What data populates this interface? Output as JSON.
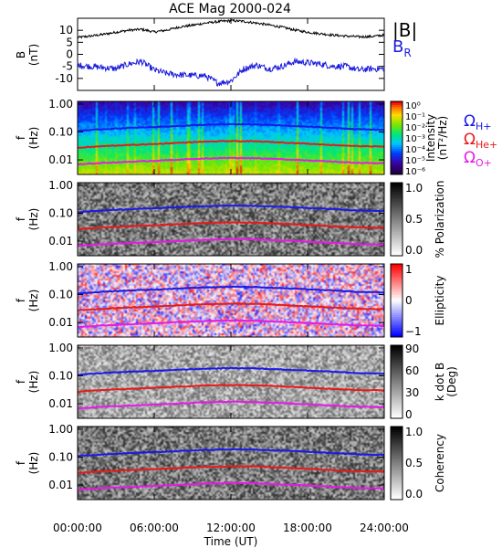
{
  "title": "ACE Mag 2000-024",
  "x_axis": {
    "label": "Time (UT)",
    "ticks": [
      "00:00:00",
      "06:00:00",
      "12:00:00",
      "18:00:00",
      "24:00:00"
    ]
  },
  "freq_ticks": [
    "1.00",
    "0.10",
    "0.01"
  ],
  "legends": {
    "bmag": "|B|",
    "br": "B",
    "br_sub": "R",
    "omega_h": "Ω",
    "omega_h_sub": "H+",
    "omega_he": "Ω",
    "omega_he_sub": "He+",
    "omega_o": "Ω",
    "omega_o_sub": "O+"
  },
  "colors": {
    "bmag": "#000000",
    "br": "#1a1adc",
    "omega_h": "#1a1ae6",
    "omega_he": "#e61a1a",
    "omega_o": "#e61ae6"
  },
  "chart_data": [
    {
      "type": "line",
      "ylabel": "B",
      "yunit": "(nT)",
      "ylim": [
        -15,
        15
      ],
      "yticks": [
        "10",
        "5",
        "0",
        "-5",
        "-10"
      ],
      "x_hours": [
        0,
        1,
        2,
        3,
        4,
        5,
        6,
        7,
        8,
        9,
        10,
        11,
        12,
        13,
        14,
        15,
        16,
        17,
        18,
        19,
        20,
        21,
        22,
        23,
        24
      ],
      "series": [
        {
          "name": "|B|",
          "values": [
            7,
            7.6,
            8.3,
            9.2,
            10,
            10.4,
            9.3,
            10.1,
            11.4,
            12.1,
            13,
            13.6,
            14,
            13.7,
            13,
            12.2,
            11.3,
            10.1,
            9.2,
            8.6,
            8,
            7.6,
            7.3,
            7.4,
            8
          ]
        },
        {
          "name": "B_R",
          "values": [
            -4.5,
            -5,
            -5.5,
            -6,
            -4,
            -3,
            -6.5,
            -8,
            -8.5,
            -8.8,
            -9,
            -12,
            -11,
            -6,
            -4.5,
            -6,
            -5,
            -3,
            -3.5,
            -4,
            -5,
            -5,
            -6.5,
            -6,
            -6
          ]
        }
      ]
    },
    {
      "type": "heatmap",
      "ylabel": "f",
      "yunit": "(Hz)",
      "scale": "log",
      "colorbar_label": "Intensity",
      "colorbar_unit": "(nT²/Hz)",
      "colorbar_ticks": [
        "10⁰",
        "10⁻¹",
        "10⁻²",
        "10⁻³",
        "10⁻⁴",
        "10⁻⁵",
        "10⁻⁶"
      ]
    },
    {
      "type": "heatmap",
      "ylabel": "f",
      "yunit": "(Hz)",
      "scale": "log",
      "colorbar_label": "% Polarization",
      "colorbar_ticks": [
        "1.0",
        "0.5",
        "0.0"
      ]
    },
    {
      "type": "heatmap",
      "ylabel": "f",
      "yunit": "(Hz)",
      "scale": "log",
      "colorbar_label": "Ellipticity",
      "colorbar_ticks": [
        "1",
        "0",
        "−1"
      ]
    },
    {
      "type": "heatmap",
      "ylabel": "f",
      "yunit": "(Hz)",
      "scale": "log",
      "colorbar_label": "k dot B",
      "colorbar_unit": "(Deg)",
      "colorbar_ticks": [
        "90",
        "60",
        "30",
        "0"
      ]
    },
    {
      "type": "heatmap",
      "ylabel": "f",
      "yunit": "(Hz)",
      "scale": "log",
      "colorbar_label": "Coherency",
      "colorbar_ticks": [
        "1.0",
        "0.5",
        "0.0"
      ]
    }
  ],
  "gyro_freqs_hz": {
    "x_hours": [
      0,
      2,
      4,
      6,
      8,
      10,
      12,
      14,
      16,
      18,
      20,
      22,
      24
    ],
    "H+": [
      0.11,
      0.125,
      0.14,
      0.15,
      0.165,
      0.18,
      0.19,
      0.185,
      0.17,
      0.155,
      0.14,
      0.125,
      0.12
    ],
    "He+": [
      0.027,
      0.031,
      0.034,
      0.037,
      0.041,
      0.045,
      0.047,
      0.046,
      0.042,
      0.038,
      0.034,
      0.031,
      0.03
    ],
    "O+": [
      0.0068,
      0.0078,
      0.0085,
      0.0093,
      0.0102,
      0.0112,
      0.0118,
      0.0115,
      0.0105,
      0.0096,
      0.0086,
      0.0078,
      0.0075
    ]
  }
}
